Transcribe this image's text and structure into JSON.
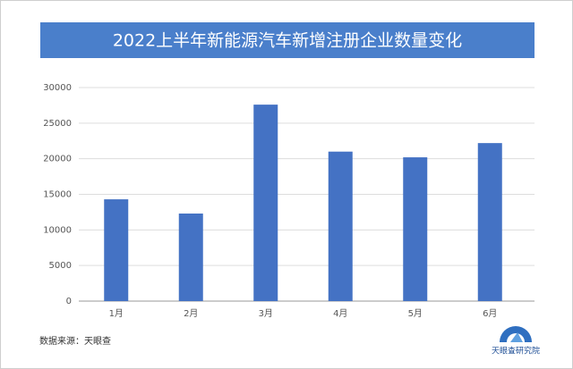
{
  "chart_data": {
    "type": "bar",
    "title": "2022上半年新能源汽车新增注册企业数量变化",
    "categories": [
      "1月",
      "2月",
      "3月",
      "4月",
      "5月",
      "6月"
    ],
    "values": [
      14300,
      12300,
      27600,
      21000,
      20200,
      22200
    ],
    "color": "#4472c4",
    "ylim": [
      0,
      30000
    ],
    "yticks": [
      0,
      5000,
      10000,
      15000,
      20000,
      25000,
      30000
    ],
    "grid": true,
    "source": "数据来源：天眼查",
    "logo_text": "天眼查研究院"
  }
}
